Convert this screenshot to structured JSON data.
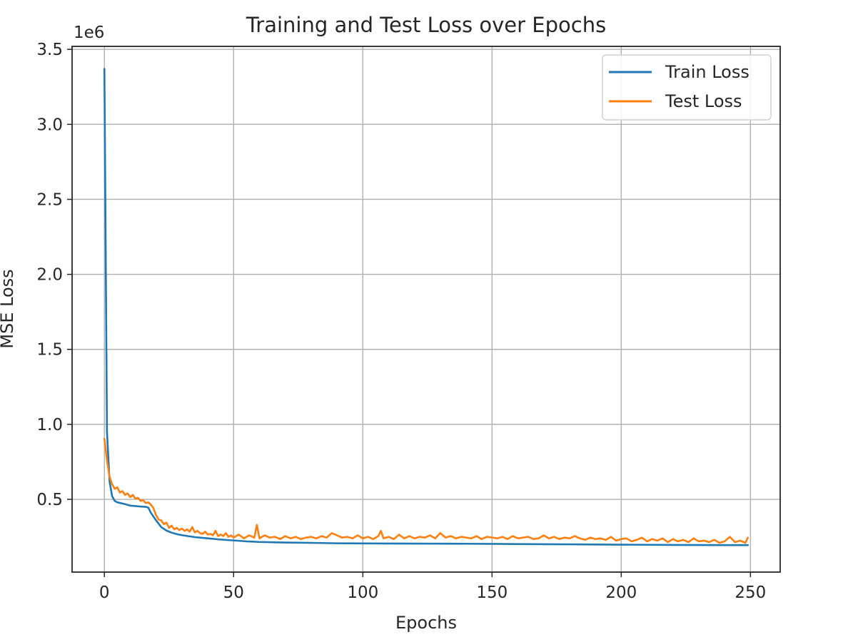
{
  "chart_data": {
    "type": "line",
    "title": "Training and Test Loss over Epochs",
    "xlabel": "Epochs",
    "ylabel": "MSE Loss",
    "y_offset_text": "1e6",
    "xlim": [
      -12.5,
      261.5
    ],
    "ylim": [
      15000,
      3520000
    ],
    "x_ticks": [
      0,
      50,
      100,
      150,
      200,
      250
    ],
    "x_tick_labels": [
      "0",
      "50",
      "100",
      "150",
      "200",
      "250"
    ],
    "y_ticks": [
      500000,
      1000000,
      1500000,
      2000000,
      2500000,
      3000000,
      3500000
    ],
    "y_tick_labels": [
      "0.5",
      "1.0",
      "1.5",
      "2.0",
      "2.5",
      "3.0",
      "3.5"
    ],
    "grid": true,
    "legend_position": "top-right",
    "colors": {
      "train": "#1f77b4",
      "test": "#ff7f0e"
    },
    "series": [
      {
        "name": "Train Loss",
        "color": "#1f77b4",
        "x": [
          0,
          1,
          2,
          3,
          4,
          5,
          6,
          8,
          10,
          12,
          14,
          16,
          17,
          18,
          20,
          22,
          24,
          26,
          28,
          30,
          35,
          40,
          45,
          50,
          55,
          60,
          70,
          80,
          90,
          100,
          120,
          140,
          160,
          180,
          200,
          220,
          240,
          249
        ],
        "values": [
          3370000,
          950000,
          620000,
          520000,
          490000,
          480000,
          476000,
          468000,
          458000,
          455000,
          452000,
          450000,
          445000,
          410000,
          360000,
          315000,
          292000,
          278000,
          268000,
          261000,
          248000,
          240000,
          232000,
          226000,
          220000,
          216000,
          212000,
          210000,
          207000,
          206000,
          205000,
          204000,
          202000,
          200000,
          198000,
          196000,
          195000,
          195000
        ]
      },
      {
        "name": "Test Loss",
        "color": "#ff7f0e",
        "x": [
          0,
          1,
          2,
          3,
          4,
          5,
          6,
          7,
          8,
          9,
          10,
          11,
          12,
          13,
          14,
          15,
          16,
          17,
          18,
          19,
          20,
          21,
          22,
          23,
          24,
          25,
          26,
          27,
          28,
          29,
          30,
          31,
          32,
          33,
          34,
          35,
          36,
          37,
          38,
          39,
          40,
          41,
          42,
          43,
          44,
          45,
          46,
          47,
          48,
          49,
          50,
          52,
          54,
          56,
          58,
          59,
          60,
          62,
          64,
          66,
          68,
          70,
          72,
          74,
          76,
          78,
          80,
          82,
          84,
          86,
          88,
          90,
          92,
          94,
          96,
          98,
          100,
          102,
          104,
          106,
          107,
          108,
          110,
          112,
          114,
          116,
          118,
          120,
          122,
          124,
          126,
          128,
          130,
          132,
          134,
          136,
          138,
          140,
          142,
          144,
          146,
          148,
          150,
          152,
          154,
          156,
          158,
          160,
          162,
          164,
          166,
          168,
          170,
          172,
          174,
          176,
          178,
          180,
          182,
          184,
          186,
          188,
          190,
          192,
          194,
          196,
          198,
          200,
          202,
          204,
          206,
          208,
          210,
          212,
          214,
          216,
          218,
          220,
          222,
          224,
          226,
          228,
          230,
          232,
          234,
          236,
          238,
          240,
          242,
          244,
          246,
          248,
          249
        ],
        "values": [
          905000,
          760000,
          650000,
          600000,
          570000,
          580000,
          545000,
          555000,
          530000,
          540000,
          515000,
          530000,
          505000,
          510000,
          490000,
          495000,
          475000,
          480000,
          465000,
          440000,
          395000,
          365000,
          360000,
          335000,
          345000,
          310000,
          325000,
          300000,
          310000,
          295000,
          305000,
          290000,
          300000,
          285000,
          315000,
          280000,
          290000,
          275000,
          270000,
          285000,
          265000,
          270000,
          260000,
          290000,
          255000,
          265000,
          255000,
          275000,
          250000,
          260000,
          245000,
          265000,
          240000,
          260000,
          245000,
          330000,
          240000,
          260000,
          245000,
          250000,
          235000,
          255000,
          240000,
          250000,
          235000,
          245000,
          250000,
          240000,
          255000,
          245000,
          275000,
          260000,
          245000,
          250000,
          240000,
          260000,
          240000,
          250000,
          235000,
          255000,
          290000,
          240000,
          250000,
          235000,
          265000,
          240000,
          255000,
          240000,
          250000,
          245000,
          260000,
          240000,
          275000,
          245000,
          255000,
          240000,
          250000,
          245000,
          240000,
          255000,
          235000,
          250000,
          245000,
          240000,
          250000,
          235000,
          255000,
          240000,
          245000,
          250000,
          235000,
          240000,
          260000,
          240000,
          250000,
          235000,
          245000,
          240000,
          255000,
          240000,
          230000,
          245000,
          235000,
          240000,
          230000,
          250000,
          225000,
          235000,
          240000,
          220000,
          230000,
          245000,
          220000,
          235000,
          225000,
          240000,
          215000,
          235000,
          220000,
          230000,
          215000,
          240000,
          220000,
          225000,
          215000,
          230000,
          210000,
          220000,
          250000,
          215000,
          225000,
          210000,
          245000
        ]
      }
    ]
  }
}
